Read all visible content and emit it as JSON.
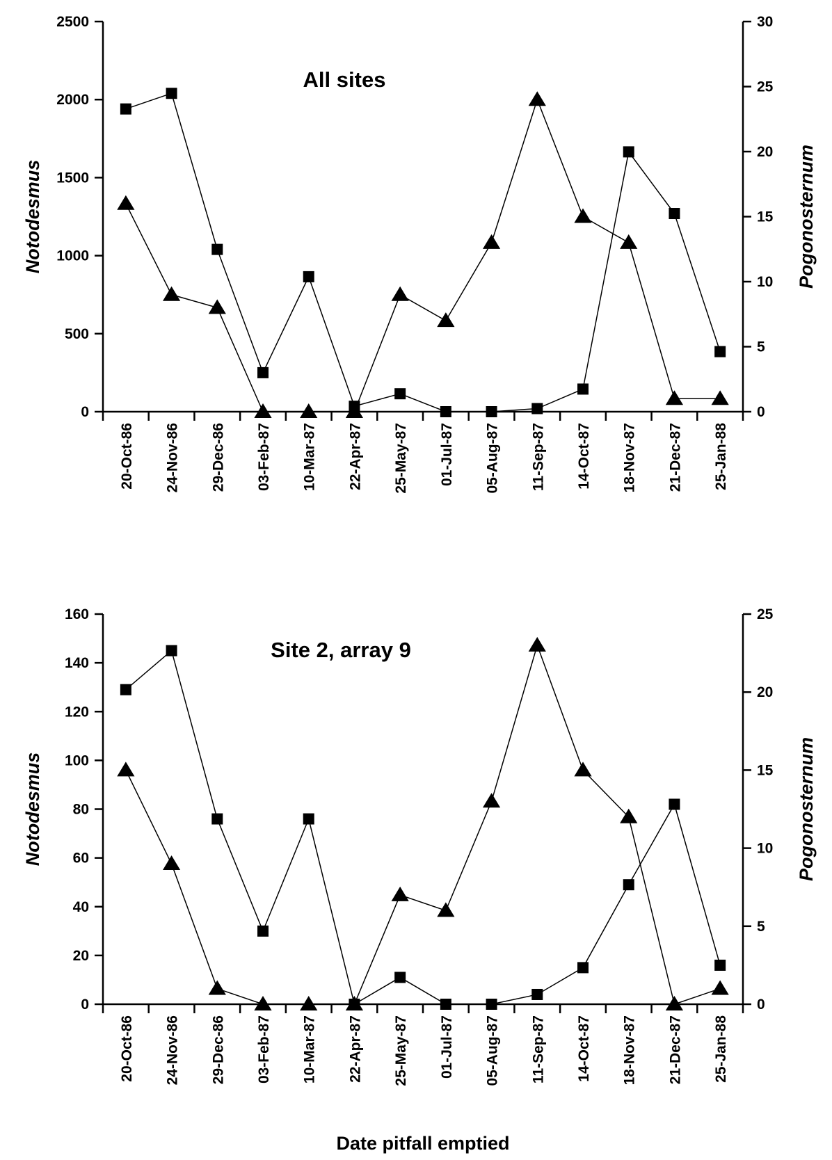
{
  "chart_data": [
    {
      "type": "line",
      "title": "All sites",
      "categories": [
        "20-Oct-86",
        "24-Nov-86",
        "29-Dec-86",
        "03-Feb-87",
        "10-Mar-87",
        "22-Apr-87",
        "25-May-87",
        "01-Jul-87",
        "05-Aug-87",
        "11-Sep-87",
        "14-Oct-87",
        "18-Nov-87",
        "21-Dec-87",
        "25-Jan-88"
      ],
      "ylabel": "Notodesmus",
      "ylabel_right": "Pogonosternum",
      "ylim": [
        0,
        2500
      ],
      "ylim_right": [
        0,
        30
      ],
      "yticks": [
        "0",
        "500",
        "1000",
        "1500",
        "2000",
        "2500"
      ],
      "yticks_right": [
        "0",
        "5",
        "10",
        "15",
        "20",
        "25",
        "30"
      ],
      "series": [
        {
          "marker": "square",
          "axis": "left",
          "values": [
            1940,
            2040,
            1040,
            250,
            865,
            35,
            115,
            0,
            0,
            20,
            145,
            1665,
            1270,
            385
          ]
        },
        {
          "marker": "triangle",
          "axis": "right",
          "values": [
            16,
            9,
            8,
            0,
            0,
            0,
            9,
            7,
            13,
            24,
            15,
            13,
            1,
            1
          ]
        }
      ]
    },
    {
      "type": "line",
      "title": "Site 2, array 9",
      "categories": [
        "20-Oct-86",
        "24-Nov-86",
        "29-Dec-86",
        "03-Feb-87",
        "10-Mar-87",
        "22-Apr-87",
        "25-May-87",
        "01-Jul-87",
        "05-Aug-87",
        "11-Sep-87",
        "14-Oct-87",
        "18-Nov-87",
        "21-Dec-87",
        "25-Jan-88"
      ],
      "xlabel": "Date pitfall emptied",
      "ylabel": "Notodesmus",
      "ylabel_right": "Pogonosternum",
      "ylim": [
        0,
        160
      ],
      "ylim_right": [
        0,
        25
      ],
      "yticks": [
        "0",
        "20",
        "40",
        "60",
        "80",
        "100",
        "120",
        "140",
        "160"
      ],
      "yticks_right": [
        "0",
        "5",
        "10",
        "15",
        "20",
        "25"
      ],
      "series": [
        {
          "marker": "square",
          "axis": "left",
          "values": [
            129,
            145,
            76,
            30,
            76,
            0,
            11,
            0,
            0,
            4,
            15,
            49,
            82,
            16
          ]
        },
        {
          "marker": "triangle",
          "axis": "right",
          "values": [
            15,
            9,
            1,
            0,
            0,
            0,
            7,
            6,
            13,
            23,
            15,
            12,
            0,
            1
          ]
        }
      ]
    }
  ]
}
